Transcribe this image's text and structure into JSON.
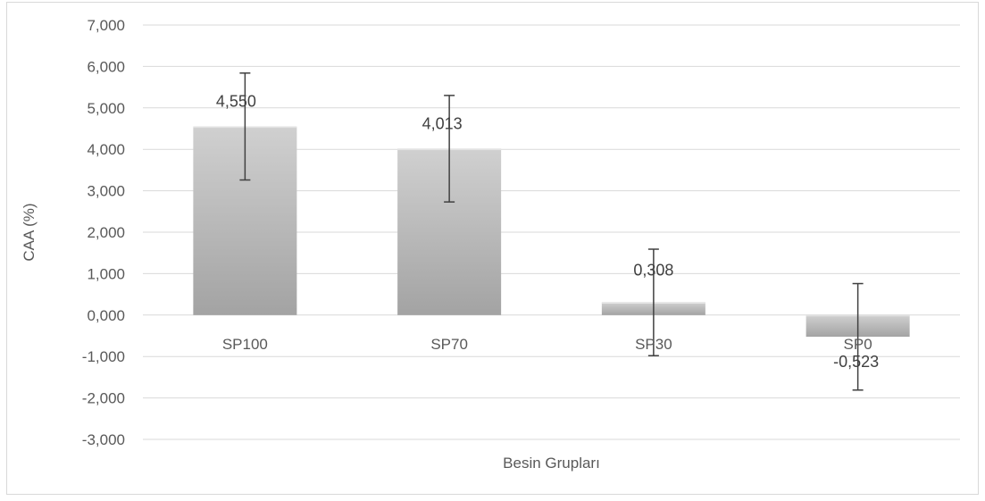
{
  "chart_data": {
    "type": "bar",
    "categories": [
      "SP100",
      "SP70",
      "SP30",
      "SP0"
    ],
    "values": [
      4.55,
      4.013,
      0.308,
      -0.523
    ],
    "value_labels": [
      "4,550",
      "4,013",
      "0,308",
      "-0,523"
    ],
    "error_low": [
      3.26,
      2.73,
      -0.98,
      -1.81
    ],
    "error_high": [
      5.84,
      5.3,
      1.59,
      0.76
    ],
    "xlabel": "Besin Grupları",
    "ylabel": "CAA (%)",
    "ylim": [
      -3,
      7
    ],
    "yticks": [
      7,
      6,
      5,
      4,
      3,
      2,
      1,
      0,
      -1,
      -2,
      -3
    ],
    "ytick_labels": [
      "7,000",
      "6,000",
      "5,000",
      "4,000",
      "3,000",
      "2,000",
      "1,000",
      "0,000",
      "-1,000",
      "-2,000",
      "-3,000"
    ],
    "grid": true,
    "legend": false,
    "colors": {
      "bar": "#a6a6a6",
      "bar_light": "#cfcfcf",
      "grid": "#d9d9d9",
      "error": "#404040"
    }
  }
}
